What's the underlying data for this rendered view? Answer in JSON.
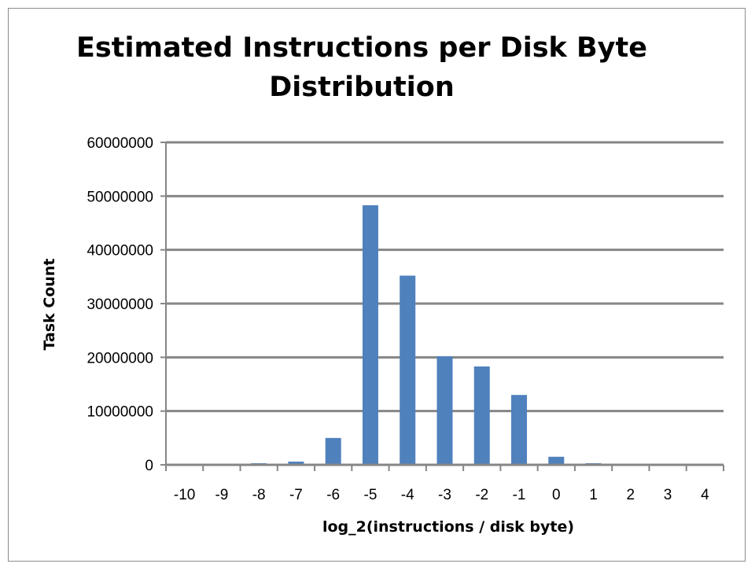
{
  "chart_data": {
    "type": "bar",
    "title_lines": [
      "Estimated Instructions per Disk Byte",
      "Distribution"
    ],
    "xlabel": "log_2(instructions / disk byte)",
    "ylabel": "Task Count",
    "categories": [
      "-10",
      "-9",
      "-8",
      "-7",
      "-6",
      "-5",
      "-4",
      "-3",
      "-2",
      "-1",
      "0",
      "1",
      "2",
      "3",
      "4"
    ],
    "values": [
      0,
      0,
      300000,
      600000,
      5000000,
      48300000,
      35200000,
      20200000,
      18300000,
      13000000,
      1500000,
      300000,
      0,
      0,
      0
    ],
    "ylim": [
      0,
      60000000
    ],
    "yticks": [
      0,
      10000000,
      20000000,
      30000000,
      40000000,
      50000000,
      60000000
    ],
    "grid": true,
    "legend": "none",
    "colors": {
      "bar": "#4f81bd",
      "grid": "#868686",
      "axis": "#868686"
    }
  }
}
